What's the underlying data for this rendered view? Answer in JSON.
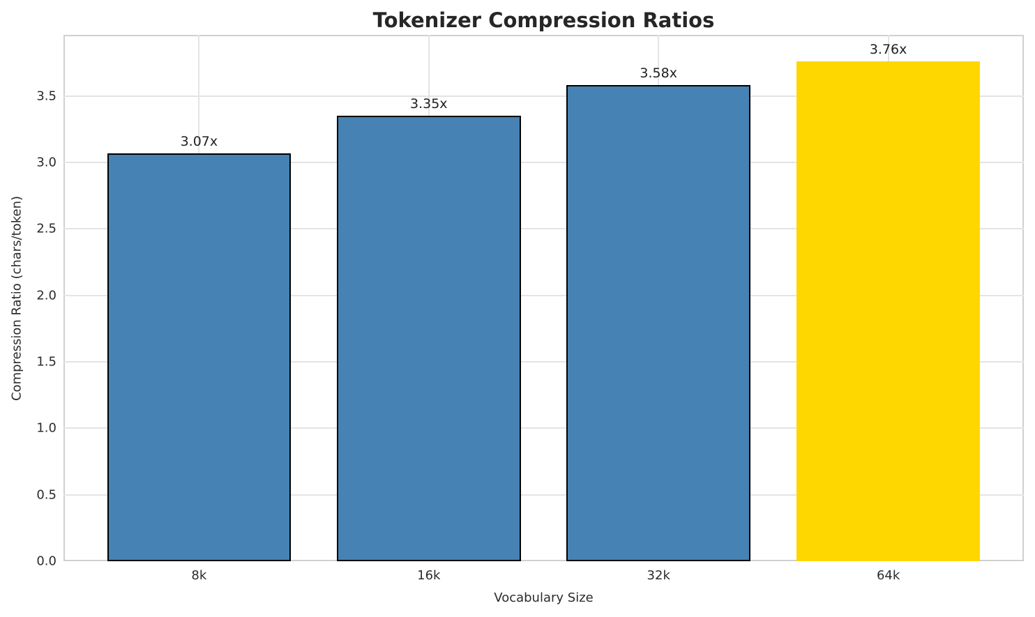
{
  "chart_data": {
    "type": "bar",
    "title": "Tokenizer Compression Ratios",
    "xlabel": "Vocabulary Size",
    "ylabel": "Compression Ratio (chars/token)",
    "categories": [
      "8k",
      "16k",
      "32k",
      "64k"
    ],
    "values": [
      3.07,
      3.35,
      3.58,
      3.76
    ],
    "bar_labels": [
      "3.07x",
      "3.35x",
      "3.58x",
      "3.76x"
    ],
    "bar_colors": [
      "#4682B4",
      "#4682B4",
      "#4682B4",
      "#FFD700"
    ],
    "bar_edge_colors": [
      "#000000",
      "#000000",
      "#000000",
      "none"
    ],
    "bar_width_units": 0.8,
    "ylim": [
      0,
      3.96
    ],
    "xlim": [
      -0.59,
      3.59
    ],
    "yticks": [
      0.0,
      0.5,
      1.0,
      1.5,
      2.0,
      2.5,
      3.0,
      3.5
    ],
    "ytick_labels": [
      "0.0",
      "0.5",
      "1.0",
      "1.5",
      "2.0",
      "2.5",
      "3.0",
      "3.5"
    ],
    "grid": true,
    "legend": "none"
  },
  "colors": {
    "background": "#ffffff",
    "text": "#2b2b2b",
    "grid": "#e4e4e4",
    "spine": "#d0d0d0",
    "bar_default": "#4682B4",
    "bar_highlight": "#FFD700",
    "bar_edge": "#000000"
  }
}
